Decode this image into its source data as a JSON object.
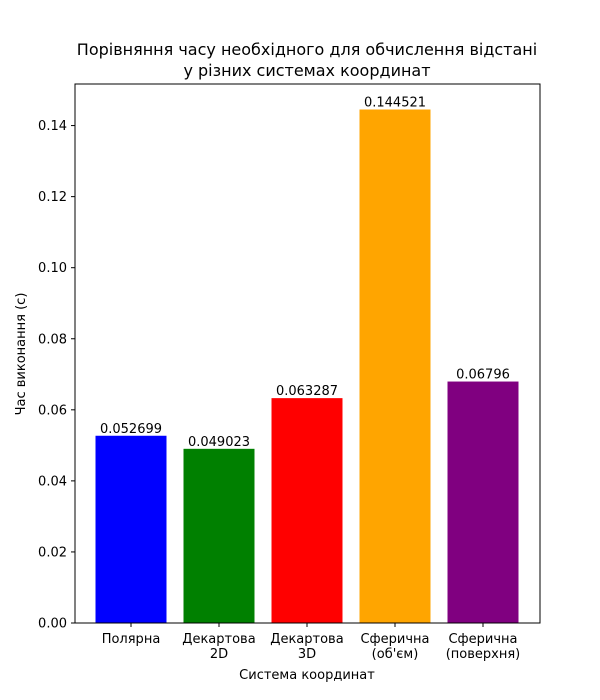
{
  "chart_data": {
    "type": "bar",
    "title": [
      "Порівняння часу необхідного для обчислення відстані",
      "у різних системах координат"
    ],
    "xlabel": "Система координат",
    "ylabel": "Час виконання (с)",
    "categories": [
      [
        "Полярна"
      ],
      [
        "Декартова",
        "2D"
      ],
      [
        "Декартова",
        "3D"
      ],
      [
        "Сферична",
        "(об'єм)"
      ],
      [
        "Сферична",
        "(поверхня)"
      ]
    ],
    "values": [
      0.052699,
      0.049023,
      0.063287,
      0.144521,
      0.06796
    ],
    "value_labels": [
      "0.052699",
      "0.049023",
      "0.063287",
      "0.144521",
      "0.06796"
    ],
    "colors": [
      "#0000ff",
      "#008000",
      "#ff0000",
      "#ffa500",
      "#800080"
    ],
    "ylim": [
      0,
      0.1517
    ],
    "yticks": [
      0.0,
      0.02,
      0.04,
      0.06,
      0.08,
      0.1,
      0.12,
      0.14
    ],
    "ytick_labels": [
      "0.00",
      "0.02",
      "0.04",
      "0.06",
      "0.08",
      "0.10",
      "0.12",
      "0.14"
    ],
    "grid": false,
    "legend": false
  }
}
